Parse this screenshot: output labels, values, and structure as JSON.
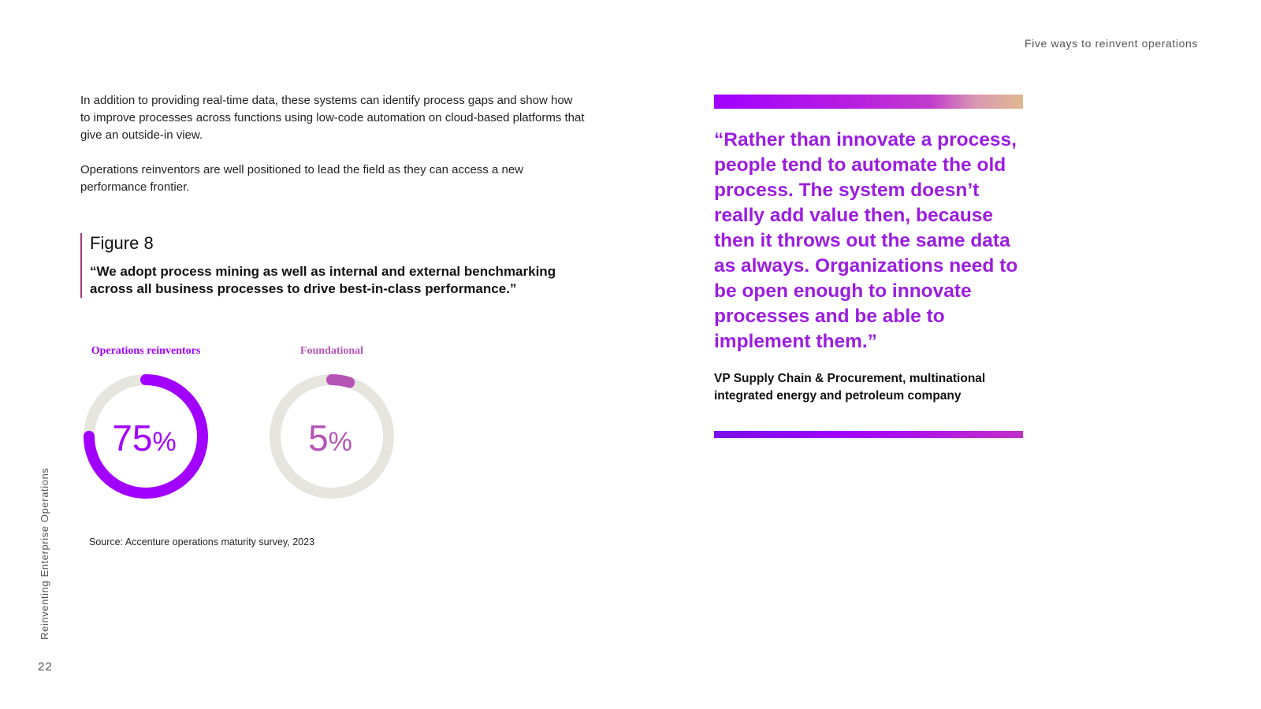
{
  "header": {
    "running_title": "Five ways to reinvent operations"
  },
  "sidebar": {
    "publication_title": "Reinventing Enterprise Operations"
  },
  "footer": {
    "page_number": "22"
  },
  "body": {
    "paragraphs": [
      "In addition to providing real-time data, these systems can identify process gaps and show how to improve processes across functions using low-code automation on cloud-based platforms that give an outside-in view.",
      "Operations reinventors are well positioned to lead the field as they can access a new performance frontier."
    ]
  },
  "figure": {
    "label": "Figure 8",
    "quote": "“We adopt process mining as well as internal and external benchmarking across all business processes to drive best-in-class performance.”",
    "source": "Source: Accenture operations maturity survey, 2023"
  },
  "chart_data": {
    "type": "donut",
    "series": [
      {
        "name": "Operations reinventors",
        "value": 75,
        "value_label": "75",
        "unit": "%",
        "color": "#a100ff"
      },
      {
        "name": "Foundational",
        "value": 5,
        "value_label": "5",
        "unit": "%",
        "color": "#b455b6"
      }
    ],
    "track_color": "#e6e5de",
    "max": 100
  },
  "pull_quote": {
    "text": "“Rather than innovate a process, people tend to automate the old process. The system doesn’t really add value then, because then it throws out the same data as always. Organizations need to be open enough to innovate processes and be able to implement them.”",
    "attribution": "VP Supply Chain & Procurement, multinational integrated energy and petroleum company"
  }
}
